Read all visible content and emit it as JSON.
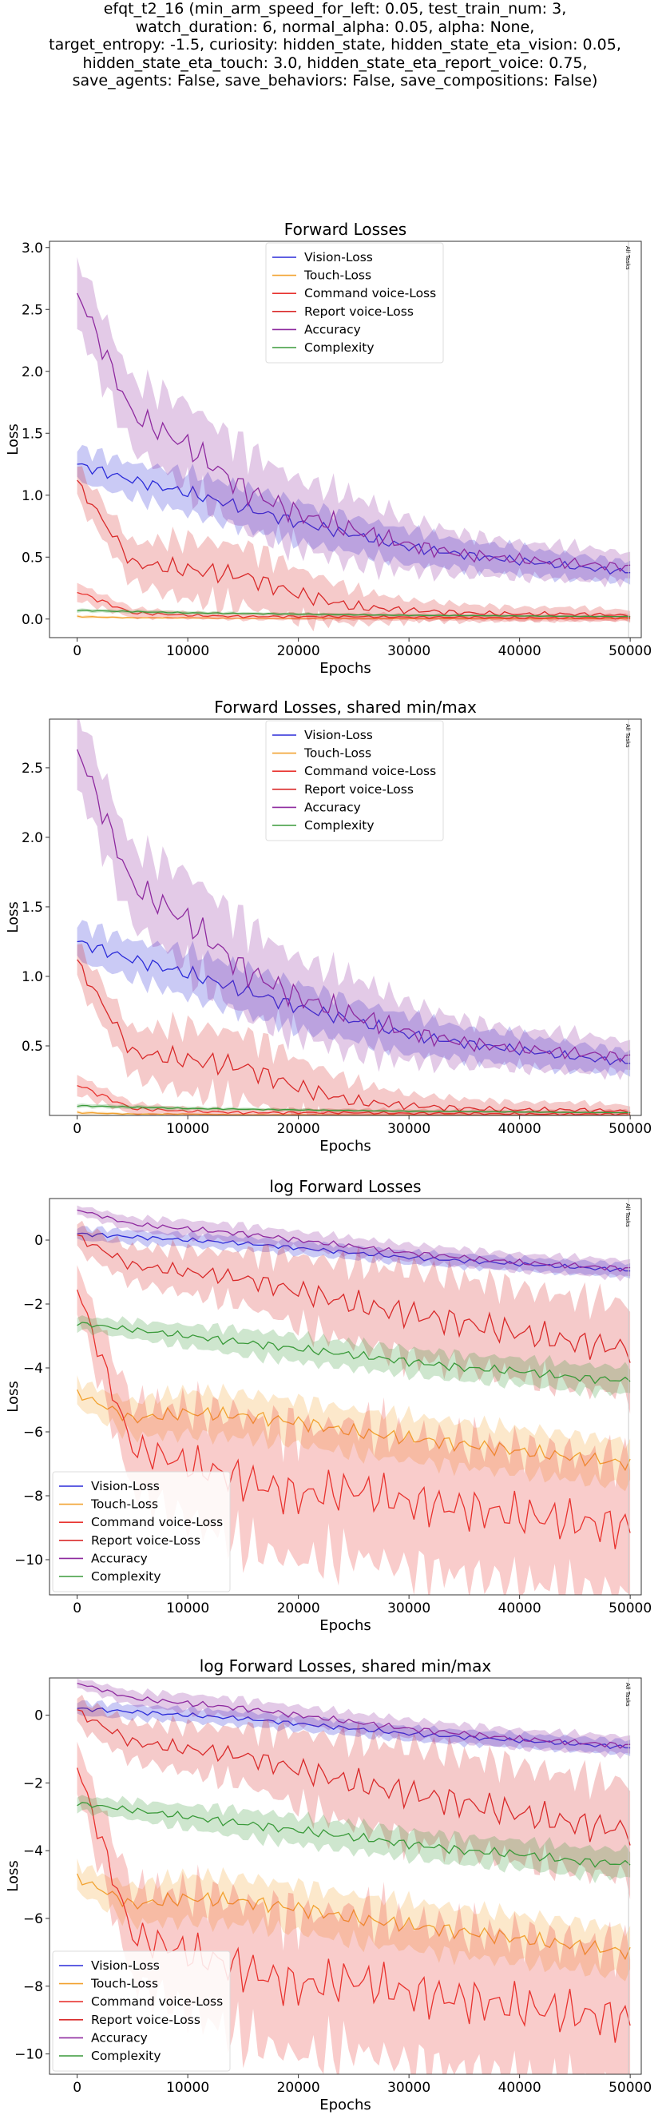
{
  "suptitle_lines": [
    "efqt_t2_16 (min_arm_speed_for_left: 0.05, test_train_num: 3,",
    "watch_duration: 6, normal_alpha: 0.05, alpha: None,",
    "target_entropy: -1.5, curiosity: hidden_state, hidden_state_eta_vision: 0.05,",
    "hidden_state_eta_touch: 3.0, hidden_state_eta_report_voice: 0.75,",
    "save_agents: False, save_behaviors: False, save_compositions: False)"
  ],
  "colors": {
    "vision": "#2b2bd9",
    "touch": "#f2a230",
    "command": "#e8332f",
    "report": "#d92a2a",
    "accuracy": "#8e2a9f",
    "complexity": "#3a9a3a"
  },
  "chart_data": [
    {
      "type": "line",
      "title": "Forward Losses",
      "xlabel": "Epochs",
      "ylabel": "Loss",
      "xlim": [
        -2500,
        51000
      ],
      "ylim": [
        -0.15,
        3.05
      ],
      "xticks": [
        0,
        10000,
        20000,
        30000,
        40000,
        50000
      ],
      "yticks": [
        0.0,
        0.5,
        1.0,
        1.5,
        2.0,
        2.5,
        3.0
      ],
      "ytick_labels": [
        "0.0",
        "0.5",
        "1.0",
        "1.5",
        "2.0",
        "2.5",
        "3.0"
      ],
      "legend_position": "upper center",
      "vline_label": "All Tasks",
      "x": [
        0,
        5000,
        10000,
        15000,
        20000,
        25000,
        30000,
        35000,
        40000,
        45000,
        50000
      ],
      "series": [
        {
          "name": "Vision-Loss",
          "key": "vision",
          "values": [
            1.25,
            1.12,
            1.02,
            0.9,
            0.78,
            0.68,
            0.58,
            0.52,
            0.47,
            0.42,
            0.38
          ],
          "band": [
            0.1,
            0.1,
            0.12,
            0.12,
            0.12,
            0.1,
            0.1,
            0.08,
            0.08,
            0.07,
            0.06
          ]
        },
        {
          "name": "Touch-Loss",
          "key": "touch",
          "values": [
            0.02,
            0.01,
            0.01,
            0.005,
            0.005,
            0.004,
            0.003,
            0.003,
            0.002,
            0.002,
            0.002
          ],
          "band": [
            0.01,
            0.005,
            0.005,
            0.003,
            0.003,
            0.002,
            0.002,
            0.002,
            0.001,
            0.001,
            0.001
          ]
        },
        {
          "name": "Command voice-Loss",
          "key": "command",
          "values": [
            0.22,
            0.05,
            0.03,
            0.02,
            0.02,
            0.02,
            0.015,
            0.015,
            0.01,
            0.01,
            0.01
          ],
          "band": [
            0.05,
            0.03,
            0.02,
            0.02,
            0.02,
            0.02,
            0.02,
            0.02,
            0.02,
            0.02,
            0.02
          ]
        },
        {
          "name": "Report voice-Loss",
          "key": "report",
          "values": [
            1.1,
            0.45,
            0.4,
            0.35,
            0.2,
            0.1,
            0.07,
            0.05,
            0.04,
            0.04,
            0.03
          ],
          "band": [
            0.1,
            0.12,
            0.18,
            0.18,
            0.15,
            0.1,
            0.06,
            0.05,
            0.04,
            0.04,
            0.03
          ]
        },
        {
          "name": "Accuracy",
          "key": "accuracy",
          "values": [
            2.65,
            1.65,
            1.4,
            1.05,
            0.85,
            0.72,
            0.6,
            0.52,
            0.48,
            0.45,
            0.42
          ],
          "band": [
            0.2,
            0.2,
            0.25,
            0.25,
            0.2,
            0.2,
            0.15,
            0.12,
            0.1,
            0.1,
            0.08
          ]
        },
        {
          "name": "Complexity",
          "key": "complexity",
          "values": [
            0.07,
            0.06,
            0.05,
            0.045,
            0.04,
            0.035,
            0.03,
            0.028,
            0.025,
            0.022,
            0.02
          ],
          "band": [
            0.01,
            0.01,
            0.01,
            0.008,
            0.008,
            0.006,
            0.006,
            0.005,
            0.005,
            0.004,
            0.004
          ]
        }
      ]
    },
    {
      "type": "line",
      "title": "Forward Losses, shared min/max",
      "xlabel": "Epochs",
      "ylabel": "Loss",
      "xlim": [
        -2500,
        51000
      ],
      "ylim": [
        0.0,
        2.85
      ],
      "xticks": [
        0,
        10000,
        20000,
        30000,
        40000,
        50000
      ],
      "yticks": [
        0.5,
        1.0,
        1.5,
        2.0,
        2.5
      ],
      "ytick_labels": [
        "0.5",
        "1.0",
        "1.5",
        "2.0",
        "2.5"
      ],
      "legend_position": "upper center",
      "vline_label": "All Tasks",
      "x": [
        0,
        5000,
        10000,
        15000,
        20000,
        25000,
        30000,
        35000,
        40000,
        45000,
        50000
      ],
      "series": [
        {
          "name": "Vision-Loss",
          "key": "vision",
          "values": [
            1.25,
            1.12,
            1.02,
            0.9,
            0.78,
            0.68,
            0.58,
            0.52,
            0.47,
            0.42,
            0.38
          ],
          "band": [
            0.1,
            0.1,
            0.12,
            0.12,
            0.12,
            0.1,
            0.1,
            0.08,
            0.08,
            0.07,
            0.06
          ]
        },
        {
          "name": "Touch-Loss",
          "key": "touch",
          "values": [
            0.02,
            0.01,
            0.01,
            0.005,
            0.005,
            0.004,
            0.003,
            0.003,
            0.002,
            0.002,
            0.002
          ],
          "band": [
            0.01,
            0.005,
            0.005,
            0.003,
            0.003,
            0.002,
            0.002,
            0.002,
            0.001,
            0.001,
            0.001
          ]
        },
        {
          "name": "Command voice-Loss",
          "key": "command",
          "values": [
            0.22,
            0.05,
            0.03,
            0.02,
            0.02,
            0.02,
            0.015,
            0.015,
            0.01,
            0.01,
            0.01
          ],
          "band": [
            0.05,
            0.03,
            0.02,
            0.02,
            0.02,
            0.02,
            0.02,
            0.02,
            0.02,
            0.02,
            0.02
          ]
        },
        {
          "name": "Report voice-Loss",
          "key": "report",
          "values": [
            1.1,
            0.45,
            0.4,
            0.35,
            0.2,
            0.1,
            0.07,
            0.05,
            0.04,
            0.04,
            0.03
          ],
          "band": [
            0.1,
            0.12,
            0.18,
            0.18,
            0.15,
            0.1,
            0.06,
            0.05,
            0.04,
            0.04,
            0.03
          ]
        },
        {
          "name": "Accuracy",
          "key": "accuracy",
          "values": [
            2.65,
            1.65,
            1.4,
            1.05,
            0.85,
            0.72,
            0.6,
            0.52,
            0.48,
            0.45,
            0.42
          ],
          "band": [
            0.2,
            0.2,
            0.25,
            0.25,
            0.2,
            0.2,
            0.15,
            0.12,
            0.1,
            0.1,
            0.08
          ]
        },
        {
          "name": "Complexity",
          "key": "complexity",
          "values": [
            0.07,
            0.06,
            0.05,
            0.045,
            0.04,
            0.035,
            0.03,
            0.028,
            0.025,
            0.022,
            0.02
          ],
          "band": [
            0.01,
            0.01,
            0.01,
            0.008,
            0.008,
            0.006,
            0.006,
            0.005,
            0.005,
            0.004,
            0.004
          ]
        }
      ]
    },
    {
      "type": "line",
      "title": "log Forward Losses",
      "xlabel": "Epochs",
      "ylabel": "Loss",
      "xlim": [
        -2500,
        51000
      ],
      "ylim": [
        -11.1,
        1.3
      ],
      "xticks": [
        0,
        10000,
        20000,
        30000,
        40000,
        50000
      ],
      "yticks": [
        0,
        -2,
        -4,
        -6,
        -8,
        -10
      ],
      "ytick_labels": [
        "0",
        "−2",
        "−4",
        "−6",
        "−8",
        "−10"
      ],
      "legend_position": "lower left",
      "vline_label": "All Tasks",
      "x": [
        0,
        5000,
        10000,
        15000,
        20000,
        25000,
        30000,
        35000,
        40000,
        45000,
        50000
      ],
      "series": [
        {
          "name": "Vision-Loss",
          "key": "vision",
          "values": [
            0.2,
            0.1,
            0.0,
            -0.1,
            -0.25,
            -0.4,
            -0.55,
            -0.65,
            -0.75,
            -0.85,
            -0.95
          ],
          "band": [
            0.15,
            0.15,
            0.15,
            0.15,
            0.15,
            0.15,
            0.15,
            0.15,
            0.15,
            0.15,
            0.15
          ]
        },
        {
          "name": "Touch-Loss",
          "key": "touch",
          "values": [
            -4.8,
            -5.6,
            -5.4,
            -5.5,
            -5.7,
            -6.0,
            -6.2,
            -6.4,
            -6.6,
            -6.8,
            -7.0
          ],
          "band": [
            0.3,
            0.4,
            0.5,
            0.5,
            0.5,
            0.5,
            0.5,
            0.5,
            0.5,
            0.5,
            0.5
          ]
        },
        {
          "name": "Command voice-Loss",
          "key": "command",
          "values": [
            -1.5,
            -6.5,
            -7.0,
            -7.5,
            -8.0,
            -7.8,
            -8.2,
            -8.4,
            -8.6,
            -8.8,
            -9.0
          ],
          "band": [
            0.5,
            1.0,
            1.3,
            1.5,
            1.5,
            1.5,
            1.5,
            1.5,
            1.5,
            1.5,
            1.5
          ]
        },
        {
          "name": "Report voice-Loss",
          "key": "report",
          "values": [
            0.1,
            -0.8,
            -1.0,
            -1.2,
            -1.6,
            -2.0,
            -2.3,
            -2.6,
            -2.9,
            -3.2,
            -3.4
          ],
          "band": [
            0.3,
            0.4,
            0.5,
            0.6,
            0.8,
            0.9,
            1.0,
            1.0,
            1.0,
            1.0,
            1.0
          ]
        },
        {
          "name": "Accuracy",
          "key": "accuracy",
          "values": [
            0.95,
            0.5,
            0.35,
            0.2,
            0.0,
            -0.2,
            -0.4,
            -0.55,
            -0.7,
            -0.8,
            -0.9
          ],
          "band": [
            0.1,
            0.15,
            0.2,
            0.2,
            0.2,
            0.2,
            0.2,
            0.2,
            0.2,
            0.2,
            0.2
          ]
        },
        {
          "name": "Complexity",
          "key": "complexity",
          "values": [
            -2.6,
            -2.8,
            -3.0,
            -3.2,
            -3.4,
            -3.6,
            -3.8,
            -4.0,
            -4.1,
            -4.3,
            -4.4
          ],
          "band": [
            0.15,
            0.2,
            0.25,
            0.3,
            0.3,
            0.3,
            0.3,
            0.3,
            0.3,
            0.3,
            0.3
          ]
        }
      ]
    },
    {
      "type": "line",
      "title": "log Forward Losses, shared min/max",
      "xlabel": "Epochs",
      "ylabel": "Loss",
      "xlim": [
        -2500,
        51000
      ],
      "ylim": [
        -10.6,
        1.1
      ],
      "xticks": [
        0,
        10000,
        20000,
        30000,
        40000,
        50000
      ],
      "yticks": [
        0,
        -2,
        -4,
        -6,
        -8,
        -10
      ],
      "ytick_labels": [
        "0",
        "−2",
        "−4",
        "−6",
        "−8",
        "−10"
      ],
      "legend_position": "lower left",
      "vline_label": "All Tasks",
      "x": [
        0,
        5000,
        10000,
        15000,
        20000,
        25000,
        30000,
        35000,
        40000,
        45000,
        50000
      ],
      "series": [
        {
          "name": "Vision-Loss",
          "key": "vision",
          "values": [
            0.2,
            0.1,
            0.0,
            -0.1,
            -0.25,
            -0.4,
            -0.55,
            -0.65,
            -0.75,
            -0.85,
            -0.95
          ],
          "band": [
            0.15,
            0.15,
            0.15,
            0.15,
            0.15,
            0.15,
            0.15,
            0.15,
            0.15,
            0.15,
            0.15
          ]
        },
        {
          "name": "Touch-Loss",
          "key": "touch",
          "values": [
            -4.8,
            -5.6,
            -5.4,
            -5.5,
            -5.7,
            -6.0,
            -6.2,
            -6.4,
            -6.6,
            -6.8,
            -7.0
          ],
          "band": [
            0.3,
            0.4,
            0.5,
            0.5,
            0.5,
            0.5,
            0.5,
            0.5,
            0.5,
            0.5,
            0.5
          ]
        },
        {
          "name": "Command voice-Loss",
          "key": "command",
          "values": [
            -1.5,
            -6.5,
            -7.0,
            -7.5,
            -8.0,
            -7.8,
            -8.2,
            -8.4,
            -8.6,
            -8.8,
            -9.0
          ],
          "band": [
            0.5,
            1.0,
            1.3,
            1.5,
            1.5,
            1.5,
            1.5,
            1.5,
            1.5,
            1.5,
            1.5
          ]
        },
        {
          "name": "Report voice-Loss",
          "key": "report",
          "values": [
            0.1,
            -0.8,
            -1.0,
            -1.2,
            -1.6,
            -2.0,
            -2.3,
            -2.6,
            -2.9,
            -3.2,
            -3.4
          ],
          "band": [
            0.3,
            0.4,
            0.5,
            0.6,
            0.8,
            0.9,
            1.0,
            1.0,
            1.0,
            1.0,
            1.0
          ]
        },
        {
          "name": "Accuracy",
          "key": "accuracy",
          "values": [
            0.95,
            0.5,
            0.35,
            0.2,
            0.0,
            -0.2,
            -0.4,
            -0.55,
            -0.7,
            -0.8,
            -0.9
          ],
          "band": [
            0.1,
            0.15,
            0.2,
            0.2,
            0.2,
            0.2,
            0.2,
            0.2,
            0.2,
            0.2,
            0.2
          ]
        },
        {
          "name": "Complexity",
          "key": "complexity",
          "values": [
            -2.6,
            -2.8,
            -3.0,
            -3.2,
            -3.4,
            -3.6,
            -3.8,
            -4.0,
            -4.1,
            -4.3,
            -4.4
          ],
          "band": [
            0.15,
            0.2,
            0.25,
            0.3,
            0.3,
            0.3,
            0.3,
            0.3,
            0.3,
            0.3,
            0.3
          ]
        }
      ]
    }
  ]
}
